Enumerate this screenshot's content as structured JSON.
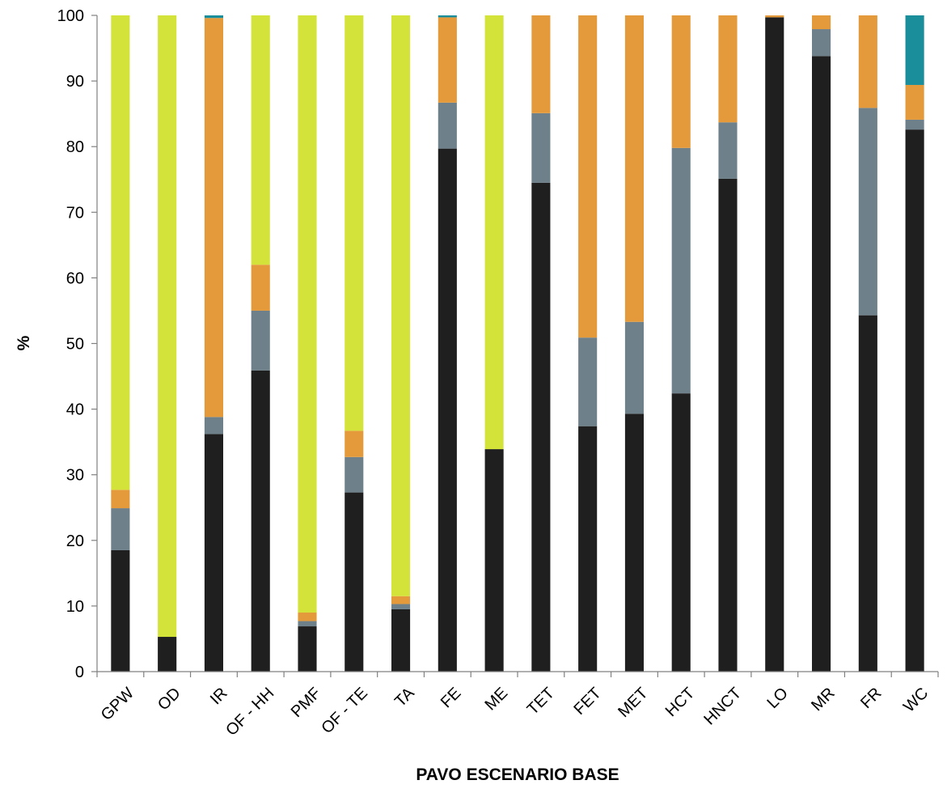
{
  "chart_data": {
    "type": "bar",
    "stacked": true,
    "title": "",
    "xlabel": "PAVO ESCENARIO BASE",
    "ylabel": "%",
    "ylim": [
      0,
      100
    ],
    "yticks": [
      0,
      10,
      20,
      30,
      40,
      50,
      60,
      70,
      80,
      90,
      100
    ],
    "gridlines": "none",
    "legend": "none",
    "categories": [
      "GPW",
      "OD",
      "IR",
      "OF - HH",
      "PMF",
      "OF - TE",
      "TA",
      "FE",
      "ME",
      "TET",
      "FET",
      "MET",
      "HCT",
      "HNCT",
      "LO",
      "MR",
      "FR",
      "WC"
    ],
    "series": [
      {
        "color": "#1f1f1f",
        "values": [
          18.5,
          5.3,
          36.2,
          45.9,
          6.9,
          27.3,
          9.5,
          79.7,
          33.9,
          74.5,
          37.4,
          39.3,
          42.4,
          75.1,
          99.7,
          93.8,
          54.3,
          82.6
        ]
      },
      {
        "color": "#6e808a",
        "values": [
          6.4,
          0.0,
          2.6,
          9.1,
          0.8,
          5.4,
          0.8,
          7.0,
          0.0,
          10.6,
          13.5,
          14.0,
          37.4,
          8.6,
          0.0,
          4.1,
          31.6,
          1.5
        ]
      },
      {
        "color": "#e49a3a",
        "values": [
          2.8,
          0.0,
          60.8,
          7.0,
          1.3,
          4.0,
          1.2,
          13.0,
          0.0,
          14.9,
          49.1,
          46.7,
          20.2,
          16.3,
          0.3,
          2.1,
          14.1,
          5.3
        ]
      },
      {
        "color": "#d4e33a",
        "values": [
          72.3,
          94.7,
          0.0,
          38.0,
          91.0,
          63.3,
          88.5,
          0.0,
          66.1,
          0.0,
          0.0,
          0.0,
          0.0,
          0.0,
          0.0,
          0.0,
          0.0,
          0.0
        ]
      },
      {
        "color": "#1a8e9a",
        "values": [
          0.0,
          0.0,
          0.4,
          0.0,
          0.0,
          0.0,
          0.0,
          0.3,
          0.0,
          0.0,
          0.0,
          0.0,
          0.0,
          0.0,
          0.0,
          0.0,
          0.0,
          10.6
        ]
      }
    ]
  }
}
